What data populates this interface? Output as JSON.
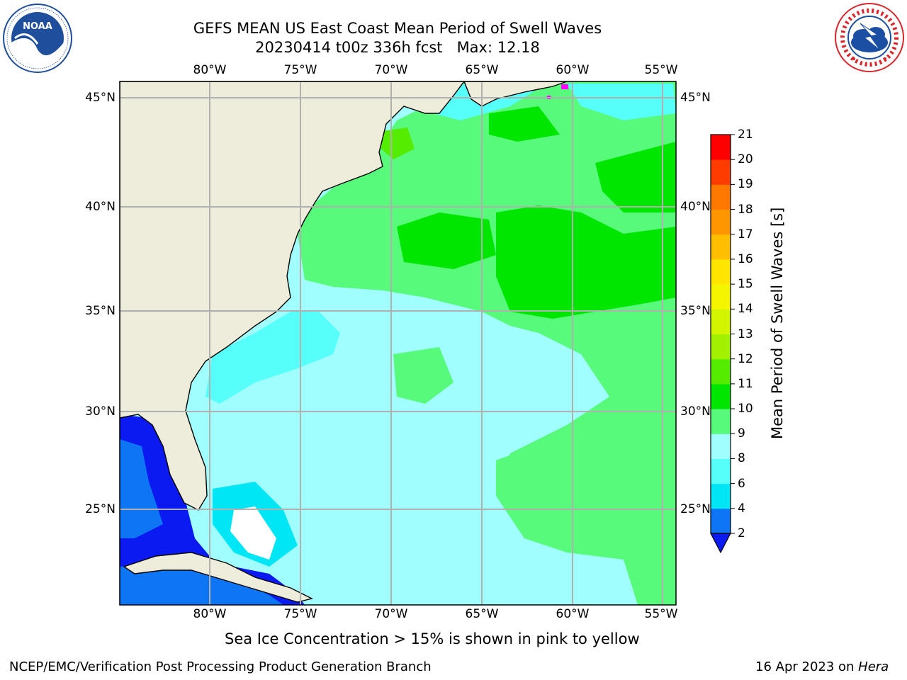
{
  "header": {
    "title_line1": "GEFS MEAN US East Coast Mean Period of Swell Waves",
    "title_line2": "20230414 t00z 336h fcst   Max: 12.18"
  },
  "logos": {
    "left": {
      "name": "NOAA",
      "ring_text": "NATIONAL OCEANIC AND ATMOSPHERIC ADMINISTRATION · U.S. DEPARTMENT OF COMMERCE",
      "colors": [
        "#1f4e9c",
        "#ffffff"
      ]
    },
    "right": {
      "name": "NATIONAL WEATHER SERVICE",
      "colors": [
        "#d8262b",
        "#1a4fa3",
        "#ffffff"
      ]
    }
  },
  "map": {
    "lon_ticks": [
      "80°W",
      "75°W",
      "70°W",
      "65°W",
      "60°W",
      "55°W"
    ],
    "lat_ticks": [
      "45°N",
      "40°N",
      "35°N",
      "30°N",
      "25°N"
    ],
    "lon_range": [
      -85,
      -54.5
    ],
    "lat_range": [
      20.5,
      46
    ],
    "land_color": "#eeeddc",
    "grid_color": "#b0b0b0"
  },
  "colorbar": {
    "label": "Mean Period of Swell Waves [s]",
    "ticks": [
      "21",
      "20",
      "19",
      "18",
      "17",
      "16",
      "15",
      "14",
      "13",
      "12",
      "11",
      "10",
      "9",
      "8",
      "6",
      "4",
      "2"
    ],
    "levels": [
      2,
      4,
      6,
      8,
      9,
      10,
      11,
      12,
      13,
      14,
      15,
      16,
      17,
      18,
      19,
      20,
      21
    ],
    "colors": [
      "#0e76f5",
      "#00e6f4",
      "#56fffa",
      "#a0fffe",
      "#57fa7a",
      "#00e600",
      "#56ec00",
      "#a3f000",
      "#d4f500",
      "#f6f500",
      "#ffe600",
      "#ffbe00",
      "#ff9600",
      "#ff7800",
      "#ff3c00",
      "#ff0000"
    ],
    "under_color": "#0a1af0"
  },
  "note": "Sea Ice Concentration > 15% is shown in pink to yellow",
  "footer": {
    "left": "NCEP/EMC/Verification Post Processing Product Generation Branch",
    "date": "16 Apr 2023 on ",
    "machine": "Hera"
  }
}
